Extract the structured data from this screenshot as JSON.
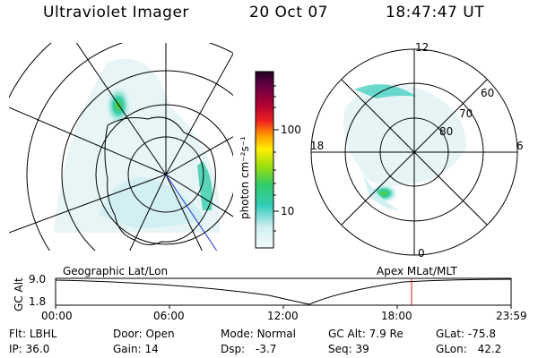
{
  "header": {
    "title": "Ultraviolet Imager",
    "date": "20 Oct 07",
    "time": "18:47:47 UT"
  },
  "colors": {
    "background": "#ffffff",
    "foreground": "#000000",
    "aurora_low": "#cfe9ef",
    "aurora_mid": "#33ccbb",
    "aurora_high": "#66cc22",
    "marker_line": "#cc2222",
    "noon_line": "#2233cc"
  },
  "colorbar": {
    "unit_label": "photon cm⁻²s⁻¹",
    "tick_labels": [
      "100",
      "10"
    ],
    "scale": "log"
  },
  "left_panel": {
    "projection": "Geographic Lat/Lon"
  },
  "right_panel": {
    "projection": "Apex MLat/MLT",
    "mlt_labels": {
      "top": "12",
      "bottom": "0",
      "left": "18",
      "right": "6"
    },
    "mlat_labels": [
      "60",
      "70",
      "80"
    ]
  },
  "altitude_plot": {
    "axis_label": "GC Alt",
    "y_ticks": [
      "9.0",
      "1.8"
    ],
    "x_ticks": [
      "00:00",
      "06:00",
      "12:00",
      "18:00",
      "23:59"
    ],
    "marker_time": "18:47"
  },
  "status": {
    "flt_label": "Flt:",
    "flt_value": "LBHL",
    "door_label": "Door:",
    "door_value": "Open",
    "mode_label": "Mode:",
    "mode_value": "Normal",
    "gcalt_label": "GC Alt:",
    "gcalt_value": "7.9 Re",
    "glat_label": "GLat:",
    "glat_value": "-75.8",
    "ip_label": "IP:",
    "ip_value": "36.0",
    "gain_label": "Gain:",
    "gain_value": "14",
    "dsp_label": "Dsp:",
    "dsp_value": "-3.7",
    "seq_label": "Seq:",
    "seq_value": "39",
    "glon_label": "GLon:",
    "glon_value": "42.2"
  }
}
